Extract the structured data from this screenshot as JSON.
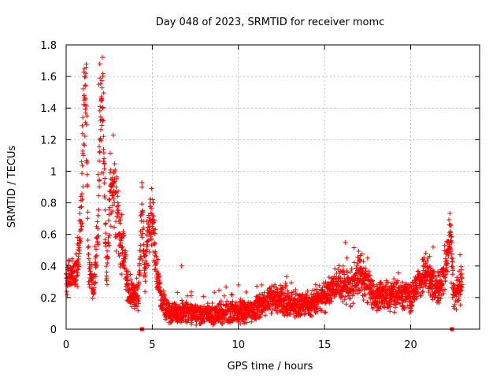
{
  "chart_data": {
    "type": "scatter",
    "title": "Day 048 of 2023, SRMTID for receiver momc",
    "xlabel": "GPS time / hours",
    "ylabel": "SRMTID / TECUs",
    "xlim": [
      0,
      24
    ],
    "ylim": [
      0,
      1.8
    ],
    "x_ticks": [
      0,
      5,
      10,
      15,
      20
    ],
    "x_tick_labels": [
      "0",
      "5",
      "10",
      "15",
      "20"
    ],
    "y_ticks": [
      0,
      0.2,
      0.4,
      0.6,
      0.8,
      1.0,
      1.2,
      1.4,
      1.6,
      1.8
    ],
    "y_tick_labels": [
      "0",
      "0.2",
      "0.4",
      "0.6",
      "0.8",
      "1",
      "1.2",
      "1.4",
      "1.6",
      "1.8"
    ],
    "grid": true,
    "marker": "+",
    "color": "#ff0000",
    "series": [
      {
        "name": "SRMTID",
        "envelope": [
          [
            0.0,
            0.3
          ],
          [
            0.3,
            0.33
          ],
          [
            0.6,
            0.38
          ],
          [
            0.8,
            0.55
          ],
          [
            0.95,
            1.05
          ],
          [
            1.05,
            1.5
          ],
          [
            1.15,
            1.55
          ],
          [
            1.3,
            0.4
          ],
          [
            1.6,
            0.25
          ],
          [
            1.9,
            0.8
          ],
          [
            2.0,
            1.5
          ],
          [
            2.1,
            1.5
          ],
          [
            2.2,
            1.1
          ],
          [
            2.35,
            0.3
          ],
          [
            2.55,
            0.85
          ],
          [
            2.8,
            0.9
          ],
          [
            3.1,
            0.6
          ],
          [
            3.4,
            0.45
          ],
          [
            3.6,
            0.25
          ],
          [
            4.0,
            0.2
          ],
          [
            4.2,
            0.2
          ],
          [
            4.4,
            0.78
          ],
          [
            4.55,
            0.35
          ],
          [
            4.75,
            0.55
          ],
          [
            5.0,
            0.72
          ],
          [
            5.2,
            0.4
          ],
          [
            5.5,
            0.18
          ],
          [
            6.0,
            0.1
          ],
          [
            7.0,
            0.1
          ],
          [
            8.0,
            0.09
          ],
          [
            9.0,
            0.1
          ],
          [
            10.0,
            0.1
          ],
          [
            11.0,
            0.12
          ],
          [
            12.0,
            0.2
          ],
          [
            13.0,
            0.16
          ],
          [
            14.0,
            0.15
          ],
          [
            15.0,
            0.2
          ],
          [
            16.0,
            0.3
          ],
          [
            16.5,
            0.25
          ],
          [
            17.0,
            0.35
          ],
          [
            18.0,
            0.2
          ],
          [
            19.0,
            0.22
          ],
          [
            20.0,
            0.2
          ],
          [
            20.5,
            0.3
          ],
          [
            21.0,
            0.35
          ],
          [
            21.5,
            0.25
          ],
          [
            22.0,
            0.35
          ],
          [
            22.3,
            0.62
          ],
          [
            22.5,
            0.2
          ],
          [
            23.0,
            0.3
          ]
        ],
        "points": [
          [
            0.1,
            0.3
          ],
          [
            0.3,
            0.38
          ],
          [
            0.5,
            0.28
          ],
          [
            0.7,
            0.42
          ],
          [
            0.9,
            0.65
          ],
          [
            1.0,
            1.1
          ],
          [
            1.05,
            1.48
          ],
          [
            1.1,
            1.54
          ],
          [
            1.15,
            1.62
          ],
          [
            1.2,
            1.35
          ],
          [
            1.9,
            1.55
          ],
          [
            1.95,
            1.68
          ],
          [
            2.05,
            1.45
          ],
          [
            2.1,
            1.4
          ],
          [
            2.2,
            1.05
          ],
          [
            2.6,
            0.95
          ],
          [
            2.9,
            0.9
          ],
          [
            4.4,
            0.9
          ],
          [
            4.45,
            0.75
          ],
          [
            5.05,
            0.8
          ],
          [
            6.7,
            0.4
          ],
          [
            10.0,
            0.28
          ],
          [
            16.2,
            0.55
          ],
          [
            16.3,
            0.45
          ],
          [
            17.5,
            0.45
          ],
          [
            21.0,
            0.45
          ],
          [
            21.3,
            0.52
          ],
          [
            22.25,
            0.66
          ],
          [
            22.3,
            0.62
          ]
        ]
      }
    ],
    "axis_markers": [
      {
        "x": 4.4,
        "y": 0
      },
      {
        "x": 22.4,
        "y": 0
      }
    ]
  }
}
